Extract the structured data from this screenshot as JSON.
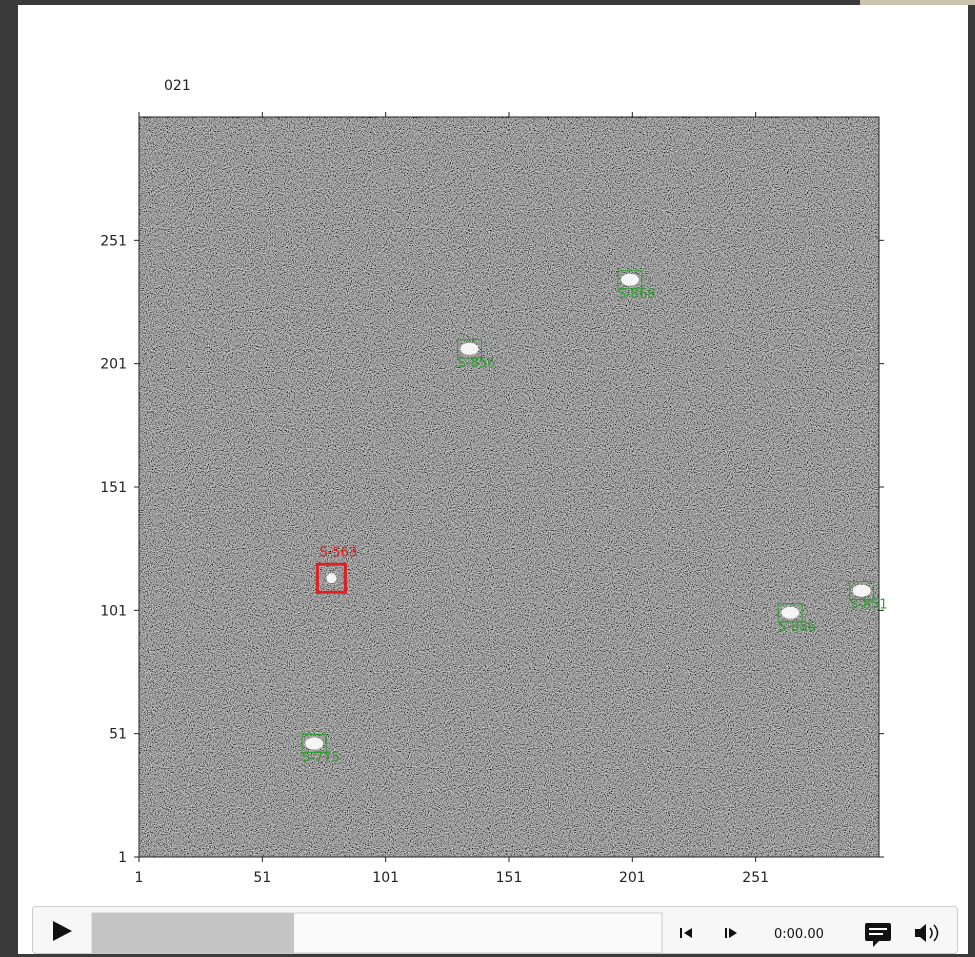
{
  "chart_data": {
    "type": "scatter",
    "title": "021",
    "xlim": [
      1,
      301
    ],
    "ylim": [
      1,
      301
    ],
    "xticks": [
      1,
      51,
      101,
      151,
      201,
      251
    ],
    "yticks": [
      1,
      51,
      101,
      151,
      201,
      251
    ],
    "series": [
      {
        "color": "#2e9e2e",
        "x": [
          200,
          135,
          265,
          294,
          72
        ],
        "values": [
          235,
          207,
          100,
          109,
          47
        ],
        "labels": [
          "S-868",
          "S-856",
          "S-886",
          "S-851",
          "S-775"
        ]
      },
      {
        "color": "#e02020",
        "x": [
          79
        ],
        "values": [
          114
        ],
        "labels": [
          "S-563"
        ]
      }
    ]
  },
  "player": {
    "time": "0:00.00"
  }
}
